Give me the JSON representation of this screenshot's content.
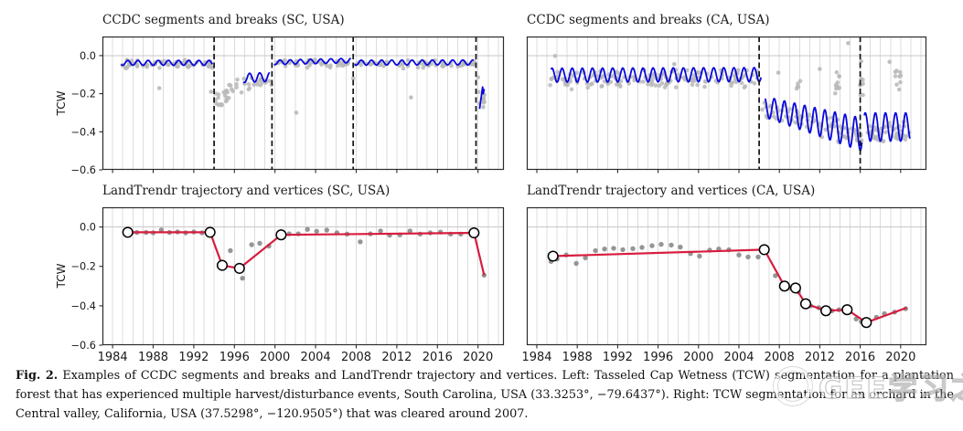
{
  "caption": {
    "prefix": "Fig. 2.",
    "text": "Examples of CCDC segments and breaks and LandTrendr trajectory and vertices. Left: Tasseled Cap Wetness (TCW) segmentation for a plantation forest that has experienced multiple harvest/disturbance events, South Carolina, USA (33.3253°, −79.6437°). Right: TCW segmentation for an orchard in the Central valley, California, USA (37.5298°, −120.9505°) that was cleared around 2007."
  },
  "watermark": {
    "text": "GEE学习之家"
  },
  "colors": {
    "blue_line": "#0808dd",
    "red_line": "#d81c3f",
    "scatter_top": "#b9b9b9",
    "scatter_bottom": "#8a8a8a",
    "grid": "#dcdcdc",
    "zero_line": "#c8c8c8",
    "spine": "#2b2b2b",
    "break_line": "#111111",
    "vertex_fill": "#ffffff",
    "vertex_edge": "#000000",
    "text": "#1a1a1a"
  },
  "axes": {
    "ylabel": "TCW",
    "xlim": [
      1983.0,
      2022.55
    ],
    "ylim": [
      -0.6,
      0.1
    ],
    "grid_year_start": 1984,
    "grid_year_end": 2022,
    "xtick_values": [
      1984,
      1988,
      1992,
      1996,
      2000,
      2004,
      2008,
      2012,
      2016,
      2020
    ],
    "xtick_labels": [
      "1984",
      "1988",
      "1992",
      "1996",
      "2000",
      "2004",
      "2008",
      "2012",
      "2016",
      "2020"
    ],
    "ytick_values": [
      0.0,
      -0.2,
      -0.4,
      -0.6
    ],
    "ytick_labels": [
      "0.0",
      "−0.2",
      "−0.4",
      "−0.6"
    ]
  },
  "chart_data": [
    {
      "id": "ccdc-sc",
      "type": "line+scatter",
      "title": "CCDC segments and breaks (SC, USA)",
      "site": "South Carolina, USA",
      "breaks": [
        1994.0,
        1999.7,
        2007.7,
        2019.8
      ],
      "segments": [
        {
          "x0": 1984.85,
          "x1": 1993.9,
          "mean0": -0.038,
          "mean1": -0.038,
          "amp0": 0.013,
          "amp1": 0.013
        },
        {
          "x0": 1996.9,
          "x1": 1999.5,
          "mean0": -0.118,
          "mean1": -0.112,
          "amp0": 0.024,
          "amp1": 0.024
        },
        {
          "x0": 1999.9,
          "x1": 2007.5,
          "mean0": -0.036,
          "mean1": -0.026,
          "amp0": 0.012,
          "amp1": 0.012
        },
        {
          "x0": 2007.85,
          "x1": 2019.6,
          "mean0": -0.037,
          "mean1": -0.036,
          "amp0": 0.013,
          "am1": 0.013,
          "amp1": 0.013
        },
        {
          "path": [
            [
              2020.15,
              -0.28
            ],
            [
              2020.45,
              -0.165
            ],
            [
              2020.52,
              -0.2
            ],
            [
              2020.6,
              -0.175
            ]
          ]
        }
      ],
      "scatter": {
        "clusters": [
          {
            "x0": 1984.9,
            "x1": 1993.9,
            "mean0": -0.045,
            "mean1": -0.045,
            "spread": 0.017,
            "n": 60,
            "seed": 11
          },
          {
            "x0": 1994.1,
            "x1": 1996.8,
            "mean0": -0.245,
            "mean1": -0.135,
            "spread": 0.038,
            "n": 26,
            "seed": 12
          },
          {
            "x0": 1996.9,
            "x1": 1999.7,
            "mean0": -0.15,
            "mean1": -0.125,
            "spread": 0.022,
            "n": 18,
            "seed": 13
          },
          {
            "x0": 2000.0,
            "x1": 2019.7,
            "mean0": -0.044,
            "mean1": -0.044,
            "spread": 0.015,
            "n": 110,
            "seed": 14
          },
          {
            "x0": 2019.9,
            "x1": 2020.7,
            "mean0": -0.22,
            "mean1": -0.24,
            "spread": 0.045,
            "n": 9,
            "seed": 15
          }
        ],
        "outliers": [
          [
            1985.3,
            -0.067
          ],
          [
            1988.6,
            -0.171
          ],
          [
            1993.7,
            -0.19
          ],
          [
            2002.1,
            -0.3
          ],
          [
            2007.7,
            -0.12
          ],
          [
            2013.4,
            -0.22
          ],
          [
            2020.0,
            -0.115
          ]
        ]
      }
    },
    {
      "id": "ccdc-ca",
      "type": "line+scatter",
      "title": "CCDC segments and breaks (CA, USA)",
      "site": "California, USA",
      "breaks": [
        2006.0,
        2016.0
      ],
      "segments": [
        {
          "x0": 1985.4,
          "x1": 2006.2,
          "mean0": -0.103,
          "mean1": -0.1,
          "amp0": 0.037,
          "amp1": 0.037
        },
        {
          "x0": 2006.6,
          "x1": 2016.2,
          "mean0": -0.27,
          "mean1": -0.415,
          "amp0": 0.055,
          "amp1": 0.088
        },
        {
          "x0": 2016.4,
          "x1": 2020.9,
          "mean0": -0.375,
          "mean1": -0.375,
          "amp0": 0.075,
          "amp1": 0.075
        }
      ],
      "scatter": {
        "clusters": [
          {
            "x0": 1985.2,
            "x1": 2006.2,
            "mean0": -0.125,
            "mean1": -0.12,
            "spread": 0.034,
            "n": 170,
            "seed": 21
          },
          {
            "x0": 2006.3,
            "x1": 2016.2,
            "mean0": -0.27,
            "mean1": -0.43,
            "spread": 0.045,
            "n": 80,
            "seed": 22
          },
          {
            "x0": 2016.3,
            "x1": 2020.9,
            "mean0": -0.41,
            "mean1": -0.4,
            "spread": 0.04,
            "n": 45,
            "seed": 23
          },
          {
            "x0": 2013.4,
            "x1": 2014.0,
            "mean0": -0.15,
            "mean1": -0.16,
            "spread": 0.06,
            "n": 10,
            "seed": 24
          },
          {
            "x0": 2015.9,
            "x1": 2016.3,
            "mean0": -0.13,
            "mean1": -0.13,
            "spread": 0.07,
            "n": 8,
            "seed": 25
          },
          {
            "x0": 2019.4,
            "x1": 2020.1,
            "mean0": -0.12,
            "mean1": -0.13,
            "spread": 0.05,
            "n": 8,
            "seed": 26
          },
          {
            "x0": 2009.7,
            "x1": 2010.1,
            "mean0": -0.15,
            "mean1": -0.16,
            "spread": 0.03,
            "n": 5,
            "seed": 27
          }
        ],
        "outliers": [
          [
            1985.8,
            -0.002
          ],
          [
            1997.6,
            -0.045
          ],
          [
            2014.8,
            0.065
          ],
          [
            2016.1,
            -0.03
          ],
          [
            2018.9,
            -0.033
          ],
          [
            2019.6,
            -0.08
          ],
          [
            2012.0,
            -0.07
          ],
          [
            2007.9,
            -0.09
          ]
        ]
      }
    },
    {
      "id": "landtrendr-sc",
      "type": "line+scatter",
      "title": "LandTrendr trajectory and vertices (SC, USA)",
      "site": "South Carolina, USA",
      "vertices": [
        [
          1985.5,
          -0.027
        ],
        [
          1993.6,
          -0.027
        ],
        [
          1994.8,
          -0.195
        ],
        [
          1996.5,
          -0.21
        ],
        [
          2000.6,
          -0.04
        ],
        [
          2019.6,
          -0.03
        ]
      ],
      "line_end": [
        2020.6,
        -0.245
      ],
      "points": [
        [
          1985.9,
          -0.028
        ],
        [
          1986.4,
          -0.028
        ],
        [
          1987.3,
          -0.028
        ],
        [
          1988.0,
          -0.03
        ],
        [
          1988.8,
          -0.015
        ],
        [
          1989.6,
          -0.028
        ],
        [
          1990.4,
          -0.025
        ],
        [
          1991.2,
          -0.03
        ],
        [
          1992.0,
          -0.025
        ],
        [
          1992.8,
          -0.03
        ],
        [
          1995.6,
          -0.12
        ],
        [
          1996.8,
          -0.26
        ],
        [
          1997.7,
          -0.09
        ],
        [
          1998.5,
          -0.083
        ],
        [
          1999.4,
          -0.097
        ],
        [
          2001.4,
          -0.035
        ],
        [
          2002.3,
          -0.035
        ],
        [
          2003.2,
          -0.012
        ],
        [
          2004.1,
          -0.022
        ],
        [
          2005.1,
          -0.016
        ],
        [
          2006.1,
          -0.03
        ],
        [
          2007.1,
          -0.036
        ],
        [
          2008.4,
          -0.075
        ],
        [
          2009.4,
          -0.035
        ],
        [
          2010.4,
          -0.02
        ],
        [
          2011.3,
          -0.042
        ],
        [
          2012.3,
          -0.04
        ],
        [
          2013.3,
          -0.02
        ],
        [
          2014.3,
          -0.036
        ],
        [
          2015.3,
          -0.03
        ],
        [
          2016.3,
          -0.026
        ],
        [
          2017.3,
          -0.036
        ],
        [
          2018.3,
          -0.036
        ],
        [
          2020.6,
          -0.245
        ]
      ]
    },
    {
      "id": "landtrendr-ca",
      "type": "line+scatter",
      "title": "LandTrendr trajectory and vertices (CA, USA)",
      "site": "California, USA",
      "vertices": [
        [
          1985.6,
          -0.148
        ],
        [
          2006.5,
          -0.115
        ],
        [
          2008.5,
          -0.3
        ],
        [
          2009.6,
          -0.31
        ],
        [
          2010.6,
          -0.39
        ],
        [
          2012.6,
          -0.425
        ],
        [
          2014.7,
          -0.42
        ],
        [
          2016.6,
          -0.485
        ]
      ],
      "line_end": [
        2020.6,
        -0.41
      ],
      "points": [
        [
          1985.4,
          -0.175
        ],
        [
          1986.0,
          -0.163
        ],
        [
          1986.9,
          -0.142
        ],
        [
          1987.9,
          -0.185
        ],
        [
          1988.8,
          -0.157
        ],
        [
          1989.8,
          -0.12
        ],
        [
          1990.7,
          -0.112
        ],
        [
          1991.6,
          -0.108
        ],
        [
          1992.5,
          -0.115
        ],
        [
          1993.5,
          -0.11
        ],
        [
          1994.4,
          -0.104
        ],
        [
          1995.4,
          -0.095
        ],
        [
          1996.3,
          -0.088
        ],
        [
          1997.3,
          -0.092
        ],
        [
          1998.2,
          -0.102
        ],
        [
          1999.2,
          -0.135
        ],
        [
          2000.1,
          -0.148
        ],
        [
          2001.1,
          -0.118
        ],
        [
          2002.0,
          -0.112
        ],
        [
          2003.0,
          -0.116
        ],
        [
          2004.0,
          -0.142
        ],
        [
          2004.9,
          -0.152
        ],
        [
          2005.9,
          -0.152
        ],
        [
          2007.6,
          -0.247
        ],
        [
          2008.9,
          -0.31
        ],
        [
          2009.9,
          -0.33
        ],
        [
          2011.1,
          -0.4
        ],
        [
          2011.9,
          -0.41
        ],
        [
          2013.2,
          -0.425
        ],
        [
          2013.9,
          -0.42
        ],
        [
          2015.6,
          -0.467
        ],
        [
          2016.1,
          -0.48
        ],
        [
          2017.6,
          -0.458
        ],
        [
          2018.4,
          -0.44
        ],
        [
          2019.4,
          -0.432
        ],
        [
          2020.5,
          -0.415
        ]
      ]
    }
  ]
}
